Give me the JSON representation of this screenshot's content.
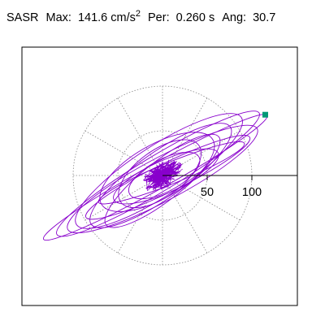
{
  "header": {
    "station": "SASR",
    "max_label": "Max:",
    "max_value": "141.6",
    "max_unit": "cm/s",
    "max_unit_exp": "2",
    "per_label": "Per:",
    "per_value": "0.260",
    "per_unit": "s",
    "ang_label": "Ang:",
    "ang_value": "30.7"
  },
  "chart_data": {
    "type": "scatter",
    "subtype": "particle-motion-hodogram",
    "title": "SASR  Max: 141.6 cm/s2  Per: 0.260 s  Ang: 30.7",
    "units": "cm/s2",
    "max_amplitude": 141.6,
    "period_s": 0.26,
    "angle_deg": 30.7,
    "xlim": [
      -155,
      155
    ],
    "ylim": [
      -155,
      155
    ],
    "radial_ticks": [
      {
        "value": 50,
        "label": "50"
      },
      {
        "value": 100,
        "label": "100"
      }
    ],
    "grid_circles": [
      50,
      100
    ],
    "grid_spokes_deg": [
      0,
      30,
      60,
      90,
      120,
      150,
      180,
      210,
      240,
      270,
      300,
      330
    ],
    "peak_marker": {
      "x": 115,
      "y": 68,
      "color": "#009977"
    },
    "trace_color": "#8800cc",
    "trace_ellipses": [
      {
        "a": 143,
        "b": 14,
        "angle": 29,
        "cx": -8,
        "cy": -2
      },
      {
        "a": 132,
        "b": 20,
        "angle": 31,
        "cx": -5,
        "cy": 2
      },
      {
        "a": 120,
        "b": 24,
        "angle": 28,
        "cx": 0,
        "cy": -4
      },
      {
        "a": 110,
        "b": 28,
        "angle": 33,
        "cx": -4,
        "cy": 5
      },
      {
        "a": 102,
        "b": 16,
        "angle": 26,
        "cx": 6,
        "cy": -2
      },
      {
        "a": 95,
        "b": 26,
        "angle": 35,
        "cx": -2,
        "cy": 0
      },
      {
        "a": 88,
        "b": 12,
        "angle": 22,
        "cx": 10,
        "cy": 3
      },
      {
        "a": 80,
        "b": 22,
        "angle": 38,
        "cx": 0,
        "cy": -6
      },
      {
        "a": 72,
        "b": 30,
        "angle": 30,
        "cx": -6,
        "cy": 4
      },
      {
        "a": 64,
        "b": 18,
        "angle": 24,
        "cx": 4,
        "cy": -1
      },
      {
        "a": 54,
        "b": 26,
        "angle": 36,
        "cx": -3,
        "cy": 2
      },
      {
        "a": 44,
        "b": 18,
        "angle": 28,
        "cx": 2,
        "cy": 0
      }
    ]
  }
}
